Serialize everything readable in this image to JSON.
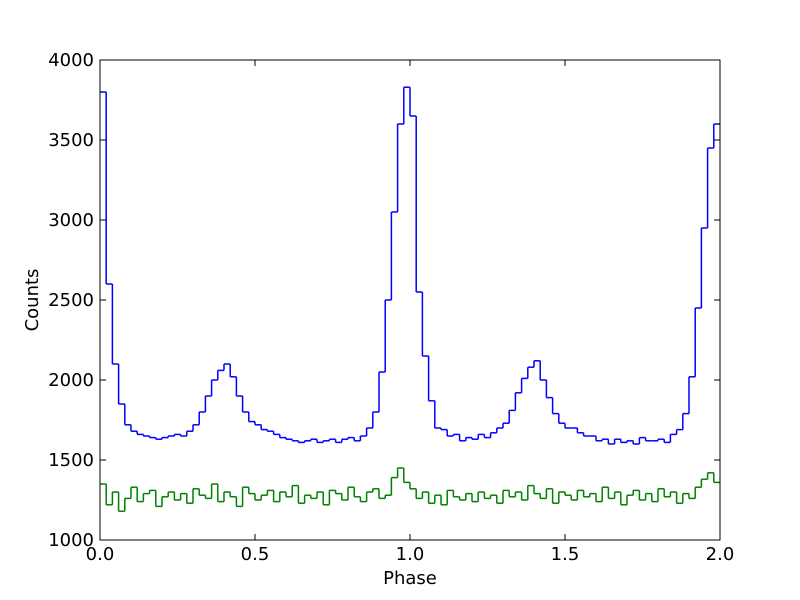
{
  "chart_data": {
    "type": "line",
    "drawstyle": "steps-mid",
    "xlabel": "Phase",
    "ylabel": "Counts",
    "xlim": [
      0,
      2
    ],
    "ylim": [
      1000,
      4000
    ],
    "xticks": [
      {
        "value": 0,
        "label": "0.0"
      },
      {
        "value": 0.5,
        "label": "0.5"
      },
      {
        "value": 1,
        "label": "1.0"
      },
      {
        "value": 1.5,
        "label": "1.5"
      },
      {
        "value": 2,
        "label": "2.0"
      }
    ],
    "yticks": [
      1000,
      1500,
      2000,
      2500,
      3000,
      3500,
      4000
    ],
    "grid": false,
    "x": [
      0.01,
      0.03,
      0.05,
      0.07,
      0.09,
      0.11,
      0.13,
      0.15,
      0.17,
      0.19,
      0.21,
      0.23,
      0.25,
      0.27,
      0.29,
      0.31,
      0.33,
      0.35,
      0.37,
      0.39,
      0.41,
      0.43,
      0.45,
      0.47,
      0.49,
      0.51,
      0.53,
      0.55,
      0.57,
      0.59,
      0.61,
      0.63,
      0.65,
      0.67,
      0.69,
      0.71,
      0.73,
      0.75,
      0.77,
      0.79,
      0.81,
      0.83,
      0.85,
      0.87,
      0.89,
      0.91,
      0.93,
      0.95,
      0.97,
      0.99,
      1.01,
      1.03,
      1.05,
      1.07,
      1.09,
      1.11,
      1.13,
      1.15,
      1.17,
      1.19,
      1.21,
      1.23,
      1.25,
      1.27,
      1.29,
      1.31,
      1.33,
      1.35,
      1.37,
      1.39,
      1.41,
      1.43,
      1.45,
      1.47,
      1.49,
      1.51,
      1.53,
      1.55,
      1.57,
      1.59,
      1.61,
      1.63,
      1.65,
      1.67,
      1.69,
      1.71,
      1.73,
      1.75,
      1.77,
      1.79,
      1.81,
      1.83,
      1.85,
      1.87,
      1.89,
      1.91,
      1.93,
      1.95,
      1.97,
      1.99
    ],
    "series": [
      {
        "color": "#0000ff",
        "values": [
          3800,
          2600,
          2100,
          1850,
          1720,
          1680,
          1660,
          1650,
          1640,
          1630,
          1640,
          1650,
          1660,
          1650,
          1680,
          1720,
          1800,
          1900,
          2000,
          2060,
          2100,
          2020,
          1900,
          1800,
          1740,
          1720,
          1690,
          1680,
          1660,
          1640,
          1630,
          1620,
          1610,
          1620,
          1630,
          1610,
          1620,
          1630,
          1610,
          1630,
          1640,
          1620,
          1650,
          1700,
          1800,
          2050,
          2500,
          3050,
          3600,
          3830,
          3650,
          2550,
          2150,
          1870,
          1700,
          1690,
          1650,
          1660,
          1620,
          1640,
          1630,
          1660,
          1640,
          1670,
          1700,
          1730,
          1810,
          1920,
          2010,
          2080,
          2120,
          2000,
          1890,
          1790,
          1730,
          1700,
          1700,
          1670,
          1650,
          1650,
          1620,
          1630,
          1600,
          1630,
          1610,
          1620,
          1600,
          1640,
          1620,
          1620,
          1630,
          1610,
          1660,
          1690,
          1790,
          2020,
          2450,
          2950,
          3450,
          3600
        ]
      },
      {
        "color": "#008000",
        "values": [
          1350,
          1220,
          1300,
          1180,
          1260,
          1330,
          1240,
          1290,
          1310,
          1210,
          1270,
          1300,
          1250,
          1290,
          1230,
          1320,
          1280,
          1260,
          1350,
          1240,
          1300,
          1270,
          1210,
          1330,
          1290,
          1250,
          1280,
          1310,
          1240,
          1300,
          1270,
          1340,
          1230,
          1280,
          1260,
          1300,
          1220,
          1310,
          1290,
          1250,
          1330,
          1270,
          1240,
          1300,
          1320,
          1260,
          1280,
          1390,
          1450,
          1360,
          1320,
          1260,
          1300,
          1230,
          1280,
          1220,
          1310,
          1270,
          1250,
          1290,
          1240,
          1300,
          1260,
          1280,
          1230,
          1310,
          1270,
          1300,
          1250,
          1340,
          1290,
          1260,
          1320,
          1230,
          1300,
          1280,
          1250,
          1310,
          1270,
          1290,
          1240,
          1330,
          1260,
          1300,
          1220,
          1280,
          1310,
          1250,
          1290,
          1240,
          1320,
          1270,
          1300,
          1230,
          1290,
          1260,
          1330,
          1380,
          1420,
          1360
        ]
      }
    ]
  }
}
